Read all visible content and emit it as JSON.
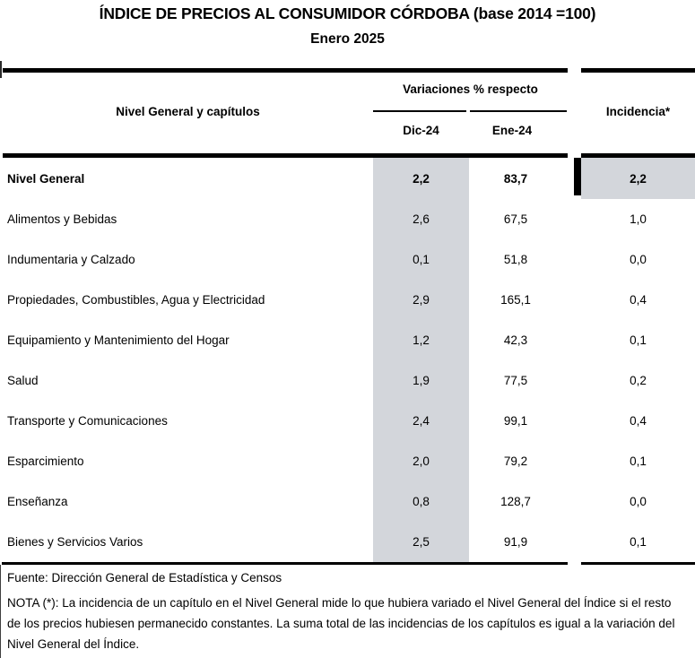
{
  "title": "ÍNDICE DE PRECIOS AL CONSUMIDOR CÓRDOBA (base 2014 =100)",
  "subtitle": "Enero 2025",
  "table": {
    "row_header": "Nivel General y capítulos",
    "col_group_label": "Variaciones % respecto",
    "col_dic": "Dic-24",
    "col_ene": "Ene-24",
    "col_incidencia": "Incidencia*",
    "rows": [
      {
        "label": "Nivel General",
        "dic": "2,2",
        "ene": "83,7",
        "inc": "2,2",
        "bold": true,
        "highlight": true
      },
      {
        "label": "Alimentos y Bebidas",
        "dic": "2,6",
        "ene": "67,5",
        "inc": "1,0"
      },
      {
        "label": "Indumentaria y Calzado",
        "dic": "0,1",
        "ene": "51,8",
        "inc": "0,0"
      },
      {
        "label": "Propiedades, Combustibles, Agua y Electricidad",
        "dic": "2,9",
        "ene": "165,1",
        "inc": "0,4"
      },
      {
        "label": "Equipamiento y Mantenimiento del Hogar",
        "dic": "1,2",
        "ene": "42,3",
        "inc": "0,1"
      },
      {
        "label": "Salud",
        "dic": "1,9",
        "ene": "77,5",
        "inc": "0,2"
      },
      {
        "label": "Transporte y Comunicaciones",
        "dic": "2,4",
        "ene": "99,1",
        "inc": "0,4"
      },
      {
        "label": "Esparcimiento",
        "dic": "2,0",
        "ene": "79,2",
        "inc": "0,1"
      },
      {
        "label": "Enseñanza",
        "dic": "0,8",
        "ene": "128,7",
        "inc": "0,0"
      },
      {
        "label": "Bienes y Servicios Varios",
        "dic": "2,5",
        "ene": "91,9",
        "inc": "0,1"
      }
    ]
  },
  "footer": {
    "source": "Fuente: Dirección General de Estadística y Censos",
    "note": "NOTA (*): La incidencia de un capítulo en el Nivel General mide lo que hubiera variado el Nivel General del Índice si el resto de los precios hubiesen permanecido constantes. La suma total de las incidencias de los capítulos es igual a la variación del Nivel General del Índice."
  },
  "colors": {
    "shade": "#d3d6db",
    "border": "#000000",
    "text": "#000000"
  }
}
